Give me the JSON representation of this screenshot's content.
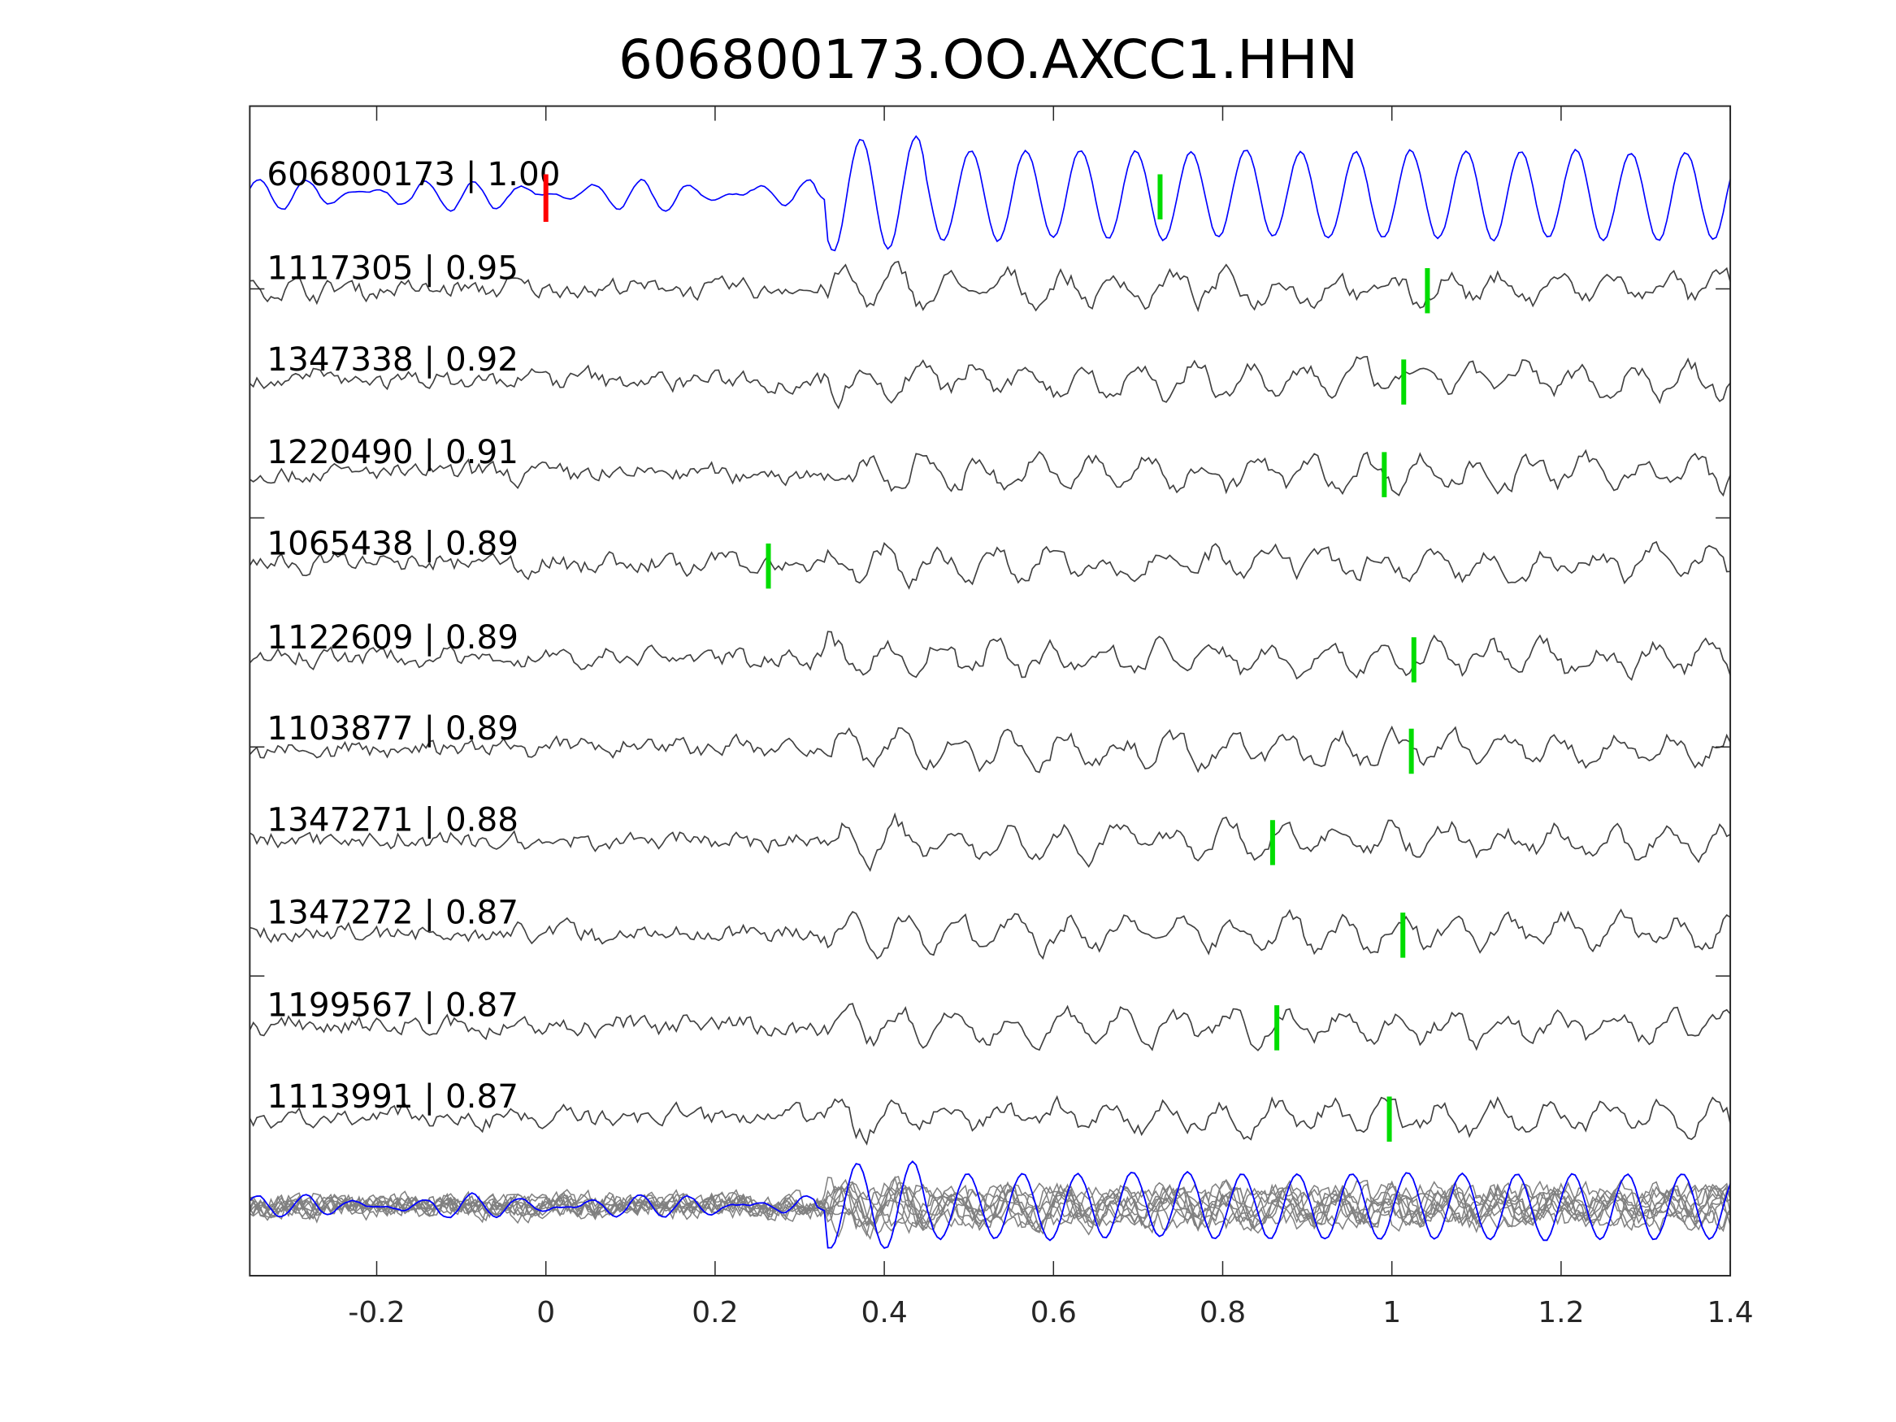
{
  "chart_data": {
    "type": "line",
    "title": "606800173.OO.AXCC1.HHN",
    "xlabel": "",
    "ylabel": "",
    "xlim": [
      -0.35,
      1.4
    ],
    "xticks": [
      "-0.2",
      "0",
      "0.2",
      "0.4",
      "0.6",
      "0.8",
      "1",
      "1.2",
      "1.4"
    ],
    "xtick_values": [
      -0.2,
      0,
      0.2,
      0.4,
      0.6,
      0.8,
      1,
      1.2,
      1.4
    ],
    "grid": false,
    "colors": {
      "master": "#0000ff",
      "trace": "#404040",
      "stack": "#808080",
      "pick": "#00dd00",
      "origin": "#ff0000"
    },
    "origin_marker": 0,
    "traces": [
      {
        "id": "606800173",
        "cc": "1.00",
        "label": "606800173 | 1.00",
        "pick": 0.726,
        "master": true
      },
      {
        "id": "1117305",
        "cc": "0.95",
        "label": "1117305 | 0.95",
        "pick": 1.042
      },
      {
        "id": "1347338",
        "cc": "0.92",
        "label": "1347338 | 0.92",
        "pick": 1.014
      },
      {
        "id": "1220490",
        "cc": "0.91",
        "label": "1220490 | 0.91",
        "pick": 0.991
      },
      {
        "id": "1065438",
        "cc": "0.89",
        "label": "1065438 | 0.89",
        "pick": 0.263
      },
      {
        "id": "1122609",
        "cc": "0.89",
        "label": "1122609 | 0.89",
        "pick": 1.026
      },
      {
        "id": "1103877",
        "cc": "0.89",
        "label": "1103877 | 0.89",
        "pick": 1.023
      },
      {
        "id": "1347271",
        "cc": "0.88",
        "label": "1347271 | 0.88",
        "pick": 0.859
      },
      {
        "id": "1347272",
        "cc": "0.87",
        "label": "1347272 | 0.87",
        "pick": 1.013
      },
      {
        "id": "1199567",
        "cc": "0.87",
        "label": "1199567 | 0.87",
        "pick": 0.864
      },
      {
        "id": "1113991",
        "cc": "0.87",
        "label": "1113991 | 0.87",
        "pick": 0.997
      }
    ]
  }
}
